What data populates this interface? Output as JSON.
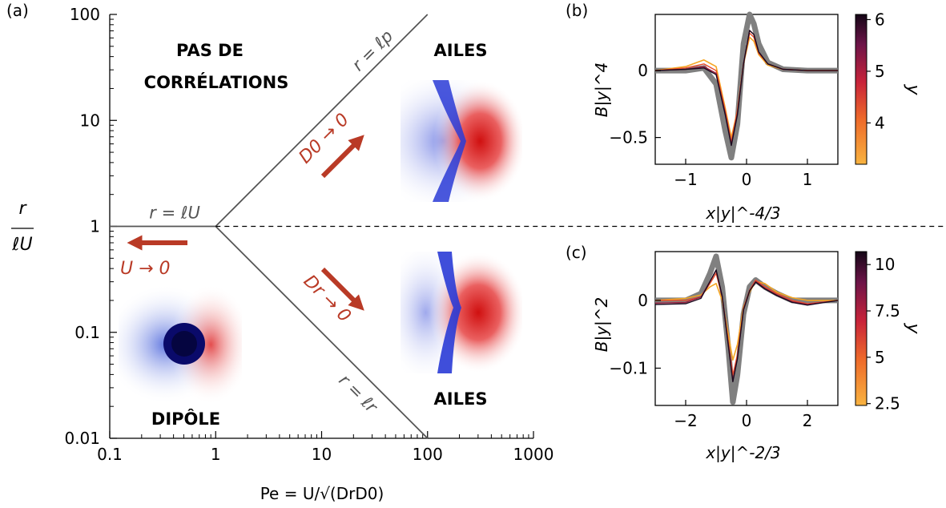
{
  "chart_data": [
    {
      "panel": "a",
      "type": "diagram-loglog",
      "panel_label": "(a)",
      "xlabel": "Pe = U/√(DrD0)",
      "ylabel_num": "r",
      "ylabel_den": "ℓU",
      "xscale": "log",
      "yscale": "log",
      "xlim": [
        0.1,
        1000
      ],
      "ylim": [
        0.01,
        100
      ],
      "x_ticks": [
        {
          "v": 0.1,
          "label": "0.1"
        },
        {
          "v": 1,
          "label": "1"
        },
        {
          "v": 10,
          "label": "10"
        },
        {
          "v": 100,
          "label": "100"
        },
        {
          "v": 1000,
          "label": "1000"
        }
      ],
      "y_ticks": [
        {
          "v": 0.01,
          "label": "0.01"
        },
        {
          "v": 0.1,
          "label": "0.1"
        },
        {
          "v": 1,
          "label": "1"
        },
        {
          "v": 10,
          "label": "10"
        },
        {
          "v": 100,
          "label": "100"
        }
      ],
      "lines": [
        {
          "label": "r = ℓU",
          "from": [
            0.1,
            1
          ],
          "to": [
            1,
            1
          ]
        },
        {
          "label": "r = ℓp",
          "from": [
            1,
            1
          ],
          "to": [
            100,
            100
          ]
        },
        {
          "label": "r = ℓr",
          "from": [
            1,
            1
          ],
          "to": [
            100,
            0.01
          ]
        }
      ],
      "dashed_line": {
        "y": 1,
        "from_x": 1
      },
      "regions": {
        "no_corr_line1": "PAS DE",
        "no_corr_line2": "CORRÉLATIONS",
        "wings_top": "AILES",
        "wings_bottom": "AILES",
        "dipole": "DIPÔLE"
      },
      "arrows": {
        "u_limit": "U → 0",
        "d0_limit": "D0 → 0",
        "dr_limit": "Dr → 0"
      },
      "colors": {
        "arrow": "#b93a26",
        "line": "#555555"
      }
    },
    {
      "panel": "b",
      "type": "line",
      "panel_label": "(b)",
      "xlabel": "x|y|^-4/3",
      "ylabel": "B|y|^4",
      "xlim": [
        -1.5,
        1.5
      ],
      "ylim": [
        -0.7,
        0.42
      ],
      "x_ticks": [
        {
          "v": -1,
          "label": "−1"
        },
        {
          "v": 0,
          "label": "0"
        },
        {
          "v": 1,
          "label": "1"
        }
      ],
      "y_ticks": [
        {
          "v": 0,
          "label": "0"
        },
        {
          "v": -0.5,
          "label": "−0.5"
        }
      ],
      "colorbar": {
        "label": "y",
        "min": 3.2,
        "max": 6.1,
        "ticks": [
          {
            "v": 4,
            "label": "4"
          },
          {
            "v": 5,
            "label": "5"
          },
          {
            "v": 6,
            "label": "6"
          }
        ]
      },
      "series": [
        {
          "color": "#808080",
          "width": 7,
          "x": [
            -1.5,
            -1.0,
            -0.7,
            -0.5,
            -0.35,
            -0.25,
            -0.15,
            -0.05,
            0.05,
            0.12,
            0.2,
            0.35,
            0.6,
            1.0,
            1.5
          ],
          "values": [
            0.0,
            0.0,
            0.02,
            -0.1,
            -0.45,
            -0.65,
            -0.4,
            0.2,
            0.42,
            0.35,
            0.2,
            0.06,
            0.01,
            0.0,
            0.0
          ]
        },
        {
          "color": "#f5a623",
          "width": 1.6,
          "x": [
            -1.5,
            -1.0,
            -0.7,
            -0.5,
            -0.35,
            -0.25,
            -0.15,
            -0.05,
            0.05,
            0.12,
            0.2,
            0.35,
            0.6,
            1.0,
            1.5
          ],
          "values": [
            0.0,
            0.03,
            0.08,
            0.03,
            -0.28,
            -0.5,
            -0.3,
            0.05,
            0.25,
            0.22,
            0.12,
            0.04,
            0.01,
            0.0,
            0.0
          ]
        },
        {
          "color": "#e84b2a",
          "width": 1.4,
          "x": [
            -1.5,
            -1.0,
            -0.7,
            -0.5,
            -0.35,
            -0.25,
            -0.15,
            -0.05,
            0.05,
            0.12,
            0.2,
            0.35,
            0.6,
            1.0,
            1.5
          ],
          "values": [
            0.0,
            0.02,
            0.05,
            0.0,
            -0.3,
            -0.53,
            -0.3,
            0.05,
            0.28,
            0.25,
            0.13,
            0.05,
            0.01,
            0.0,
            0.0
          ]
        },
        {
          "color": "#9b1d3d",
          "width": 1.4,
          "x": [
            -1.5,
            -1.0,
            -0.7,
            -0.5,
            -0.35,
            -0.25,
            -0.15,
            -0.05,
            0.05,
            0.12,
            0.2,
            0.35,
            0.6,
            1.0,
            1.5
          ],
          "values": [
            0.0,
            0.01,
            0.03,
            -0.02,
            -0.32,
            -0.55,
            -0.32,
            0.05,
            0.3,
            0.27,
            0.14,
            0.05,
            0.01,
            0.0,
            0.0
          ]
        },
        {
          "color": "#1a0a1e",
          "width": 1.4,
          "x": [
            -1.5,
            -1.0,
            -0.7,
            -0.5,
            -0.35,
            -0.25,
            -0.15,
            -0.05,
            0.05,
            0.12,
            0.2,
            0.35,
            0.6,
            1.0,
            1.5
          ],
          "values": [
            0.0,
            0.01,
            0.02,
            -0.03,
            -0.33,
            -0.56,
            -0.33,
            0.05,
            0.3,
            0.27,
            0.14,
            0.05,
            0.01,
            0.0,
            0.0
          ]
        }
      ]
    },
    {
      "panel": "c",
      "type": "line",
      "panel_label": "(c)",
      "xlabel": "x|y|^-2/3",
      "ylabel": "B|y|^2",
      "xlim": [
        -3,
        3
      ],
      "ylim": [
        -0.155,
        0.072
      ],
      "x_ticks": [
        {
          "v": -2,
          "label": "−2"
        },
        {
          "v": 0,
          "label": "0"
        },
        {
          "v": 2,
          "label": "2"
        }
      ],
      "y_ticks": [
        {
          "v": 0,
          "label": "0"
        },
        {
          "v": -0.1,
          "label": "−0.1"
        }
      ],
      "colorbar": {
        "label": "y",
        "min": 2.4,
        "max": 10.7,
        "ticks": [
          {
            "v": 2.5,
            "label": "2.5"
          },
          {
            "v": 5,
            "label": "5"
          },
          {
            "v": 7.5,
            "label": "7.5"
          },
          {
            "v": 10,
            "label": "10"
          }
        ]
      },
      "series": [
        {
          "color": "#808080",
          "width": 7,
          "x": [
            -3,
            -2,
            -1.5,
            -1.2,
            -1.0,
            -0.8,
            -0.6,
            -0.45,
            -0.3,
            -0.1,
            0.1,
            0.3,
            0.6,
            1.0,
            1.5,
            2,
            3
          ],
          "values": [
            0.0,
            0.0,
            0.01,
            0.04,
            0.065,
            0.02,
            -0.07,
            -0.15,
            -0.11,
            -0.02,
            0.02,
            0.03,
            0.02,
            0.01,
            0.0,
            0.0,
            0.0
          ]
        },
        {
          "color": "#f5a623",
          "width": 1.6,
          "x": [
            -3,
            -2,
            -1.5,
            -1.2,
            -1.0,
            -0.8,
            -0.6,
            -0.45,
            -0.3,
            -0.1,
            0.1,
            0.3,
            0.6,
            1.0,
            1.5,
            2,
            3
          ],
          "values": [
            0.0,
            0.003,
            0.008,
            0.02,
            0.025,
            0.0,
            -0.05,
            -0.088,
            -0.065,
            -0.01,
            0.012,
            0.028,
            0.025,
            0.012,
            0.004,
            0.0,
            0.0
          ]
        },
        {
          "color": "#e84b2a",
          "width": 1.4,
          "x": [
            -3,
            -2,
            -1.5,
            -1.2,
            -1.0,
            -0.8,
            -0.6,
            -0.45,
            -0.3,
            -0.1,
            0.1,
            0.3,
            0.6,
            1.0,
            1.5,
            2,
            3
          ],
          "values": [
            0.0,
            0.0,
            0.005,
            0.025,
            0.04,
            0.005,
            -0.06,
            -0.11,
            -0.08,
            -0.012,
            0.015,
            0.03,
            0.02,
            0.01,
            0.0,
            -0.005,
            0.0
          ]
        },
        {
          "color": "#9b1d3d",
          "width": 1.4,
          "x": [
            -3,
            -2,
            -1.5,
            -1.2,
            -1.0,
            -0.8,
            -0.6,
            -0.45,
            -0.3,
            -0.1,
            0.1,
            0.3,
            0.6,
            1.0,
            1.5,
            2,
            3
          ],
          "values": [
            -0.004,
            -0.003,
            0.005,
            0.028,
            0.044,
            0.006,
            -0.065,
            -0.118,
            -0.085,
            -0.014,
            0.014,
            0.028,
            0.018,
            0.008,
            -0.002,
            -0.006,
            0.0
          ]
        },
        {
          "color": "#1a0a1e",
          "width": 1.4,
          "x": [
            -3,
            -2,
            -1.5,
            -1.2,
            -1.0,
            -0.8,
            -0.6,
            -0.45,
            -0.3,
            -0.1,
            0.1,
            0.3,
            0.6,
            1.0,
            1.5,
            2,
            3
          ],
          "values": [
            -0.006,
            -0.005,
            0.003,
            0.028,
            0.045,
            0.006,
            -0.066,
            -0.12,
            -0.086,
            -0.014,
            0.014,
            0.027,
            0.017,
            0.007,
            -0.003,
            -0.007,
            0.0
          ]
        }
      ]
    }
  ]
}
